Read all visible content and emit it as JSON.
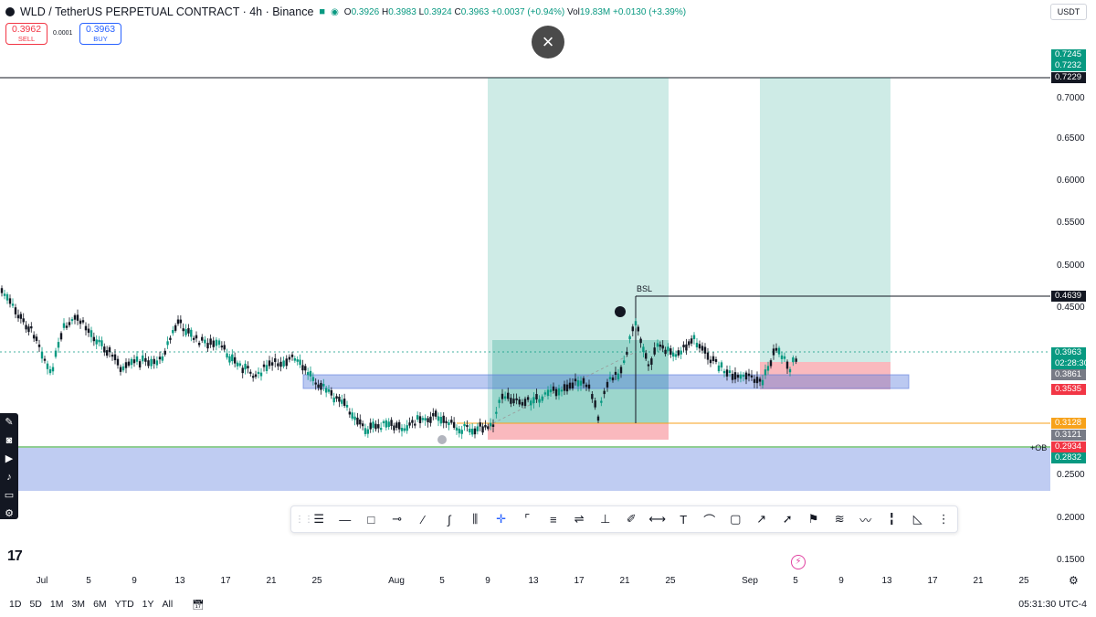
{
  "header": {
    "symbol": "WLD / TetherUS PERPETUAL CONTRACT · 4h · Binance",
    "open_label": "O",
    "open": "0.3926",
    "high_label": "H",
    "high": "0.3983",
    "low_label": "L",
    "low": "0.3924",
    "close_label": "C",
    "close": "0.3963",
    "change": "+0.0037 (+0.94%)",
    "vol_label": "Vol",
    "vol": "19.83M",
    "vol_change": "+0.0130 (+3.39%)",
    "currency": "USDT"
  },
  "trade": {
    "sell_price": "0.3962",
    "sell_label": "SELL",
    "spread": "0.0001",
    "buy_price": "0.3963",
    "buy_label": "BUY"
  },
  "close_button": "×",
  "price_scale": {
    "ticks": [
      "0.7000",
      "0.6500",
      "0.6000",
      "0.5500",
      "0.5000",
      "0.4500",
      "0.2500",
      "0.2000",
      "0.1500"
    ],
    "labels": {
      "top1": "0.7245",
      "top2": "0.7232",
      "top3": "0.7229",
      "bsl": "0.4639",
      "current": "0.3963",
      "countdown": "02:28:30",
      "l3861": "0.3861",
      "l3535": "0.3535",
      "l3128": "0.3128",
      "l3121": "0.3121",
      "l2934": "0.2934",
      "l2832": "0.2832"
    }
  },
  "annotations": {
    "bsl": "BSL",
    "ob": "+OB"
  },
  "time_axis": [
    "Jul",
    "5",
    "9",
    "13",
    "17",
    "21",
    "25",
    "Aug",
    "5",
    "9",
    "13",
    "17",
    "21",
    "25",
    "Sep",
    "5",
    "9",
    "13",
    "17",
    "21",
    "25"
  ],
  "range_bar": [
    "1D",
    "5D",
    "1M",
    "3M",
    "6M",
    "YTD",
    "1Y",
    "All"
  ],
  "clock": "05:31:30 UTC-4",
  "colors": {
    "up": "#089981",
    "down": "#131722",
    "profit_zone": "rgba(8,153,129,0.20)",
    "loss_zone": "rgba(242,54,69,0.35)",
    "ob_zone": "rgba(86,120,220,0.38)",
    "orange_line": "#f7a21b"
  }
}
